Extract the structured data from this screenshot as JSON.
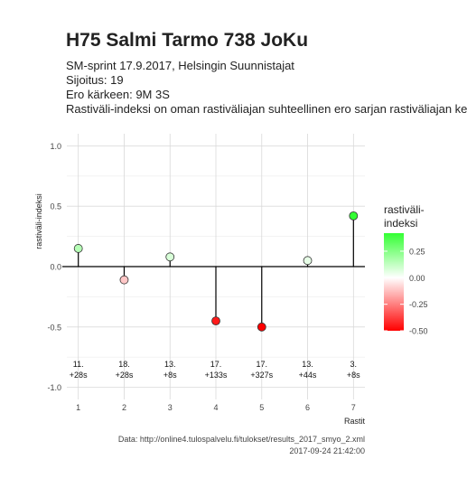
{
  "header": {
    "title": "H75 Salmi Tarmo 738 JoKu",
    "subtitle_lines": [
      "SM-sprint 17.9.2017, Helsingin Suunnistajat",
      "Sijoitus: 19",
      "Ero kärkeen: 9M 3S",
      "Rastiväli-indeksi on oman rastiväliajan suhteellinen ero sarjan rastiväliajan kes"
    ]
  },
  "caption": {
    "line1": "Data: http://online4.tulospalvelu.fi/tulokset/results_2017_smyo_2.xml",
    "line2": "2017-09-24 21:42:00"
  },
  "chart_data": {
    "type": "lollipop",
    "xlabel": "Rastit",
    "ylabel": "rastiväli-indeksi",
    "ylim": [
      -1.0,
      1.0
    ],
    "yticks": [
      -1.0,
      -0.5,
      0.0,
      0.5,
      1.0
    ],
    "ytick_labels": [
      "-1.0",
      "-0.5",
      "0.0",
      "0.5",
      "1.0"
    ],
    "xticks": [
      1,
      2,
      3,
      4,
      5,
      6,
      7
    ],
    "grid": true,
    "points": [
      {
        "x": 1,
        "y": 0.15,
        "rank": "11.",
        "diff": "+28s"
      },
      {
        "x": 2,
        "y": -0.11,
        "rank": "18.",
        "diff": "+28s"
      },
      {
        "x": 3,
        "y": 0.08,
        "rank": "13.",
        "diff": "+8s"
      },
      {
        "x": 4,
        "y": -0.45,
        "rank": "17.",
        "diff": "+133s"
      },
      {
        "x": 5,
        "y": -0.5,
        "rank": "17.",
        "diff": "+327s"
      },
      {
        "x": 6,
        "y": 0.05,
        "rank": "13.",
        "diff": "+44s"
      },
      {
        "x": 7,
        "y": 0.42,
        "rank": "3.",
        "diff": "+8s"
      }
    ],
    "legend": {
      "title_lines": [
        "rastiväli-",
        "indeksi"
      ],
      "ticks": [
        0.25,
        0.0,
        -0.25,
        -0.5
      ],
      "tick_labels": [
        "0.25",
        "0.00",
        "-0.25",
        "-0.50"
      ],
      "range": [
        -0.5,
        0.42
      ],
      "placement": "right"
    },
    "colors": {
      "high": "#33ff33",
      "mid": "#ffffff",
      "low": "#ff0000"
    }
  }
}
